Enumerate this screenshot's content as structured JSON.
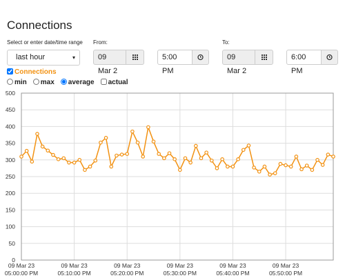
{
  "header": {
    "title": "Connections"
  },
  "range": {
    "label": "Select or enter date/time range",
    "preset": "last hour",
    "from_label": "From:",
    "from_date": "09 Mar 2",
    "from_time": "5:00 PM",
    "to_label": "To:",
    "to_date": "09 Mar 2",
    "to_time": "6:00 PM"
  },
  "options": {
    "series_toggle": {
      "label": "Connections",
      "checked": true
    },
    "modes": [
      {
        "label": "min",
        "checked": false
      },
      {
        "label": "max",
        "checked": false
      },
      {
        "label": "average",
        "checked": true
      }
    ],
    "actual": {
      "label": "actual",
      "checked": false
    }
  },
  "chart_data": {
    "type": "line",
    "color": "#f29111",
    "grid": true,
    "x": [
      0,
      1,
      2,
      3,
      4,
      5,
      6,
      7,
      8,
      9,
      10,
      11,
      12,
      13,
      14,
      15,
      16,
      17,
      18,
      19,
      20,
      21,
      22,
      23,
      24,
      25,
      26,
      27,
      28,
      29,
      30,
      31,
      32,
      33,
      34,
      35,
      36,
      37,
      38,
      39,
      40,
      41,
      42,
      43,
      44,
      45,
      46,
      47,
      48,
      49,
      50,
      51,
      52,
      53,
      54,
      55,
      56,
      57,
      58,
      59
    ],
    "series": [
      {
        "name": "Connections",
        "color": "#f29111",
        "values": [
          310,
          327,
          295,
          378,
          340,
          328,
          315,
          302,
          305,
          292,
          292,
          300,
          270,
          280,
          298,
          352,
          366,
          280,
          313,
          316,
          318,
          385,
          352,
          310,
          398,
          355,
          318,
          305,
          320,
          302,
          270,
          305,
          292,
          342,
          305,
          322,
          298,
          275,
          302,
          280,
          280,
          302,
          330,
          343,
          277,
          265,
          280,
          256,
          260,
          288,
          284,
          280,
          310,
          272,
          283,
          270,
          300,
          285,
          316,
          310
        ]
      }
    ],
    "xlim": [
      0,
      59
    ],
    "ylim": [
      0,
      500
    ],
    "yticks": [
      0,
      50,
      100,
      150,
      200,
      250,
      300,
      350,
      400,
      450,
      500
    ],
    "xticks": [
      {
        "value": 0,
        "label": [
          "09 Mar 23",
          "05:00:00 PM"
        ]
      },
      {
        "value": 10,
        "label": [
          "09 Mar 23",
          "05:10:00 PM"
        ]
      },
      {
        "value": 20,
        "label": [
          "09 Mar 23",
          "05:20:00 PM"
        ]
      },
      {
        "value": 30,
        "label": [
          "09 Mar 23",
          "05:30:00 PM"
        ]
      },
      {
        "value": 40,
        "label": [
          "09 Mar 23",
          "05:40:00 PM"
        ]
      },
      {
        "value": 50,
        "label": [
          "09 Mar 23",
          "05:50:00 PM"
        ]
      }
    ]
  }
}
